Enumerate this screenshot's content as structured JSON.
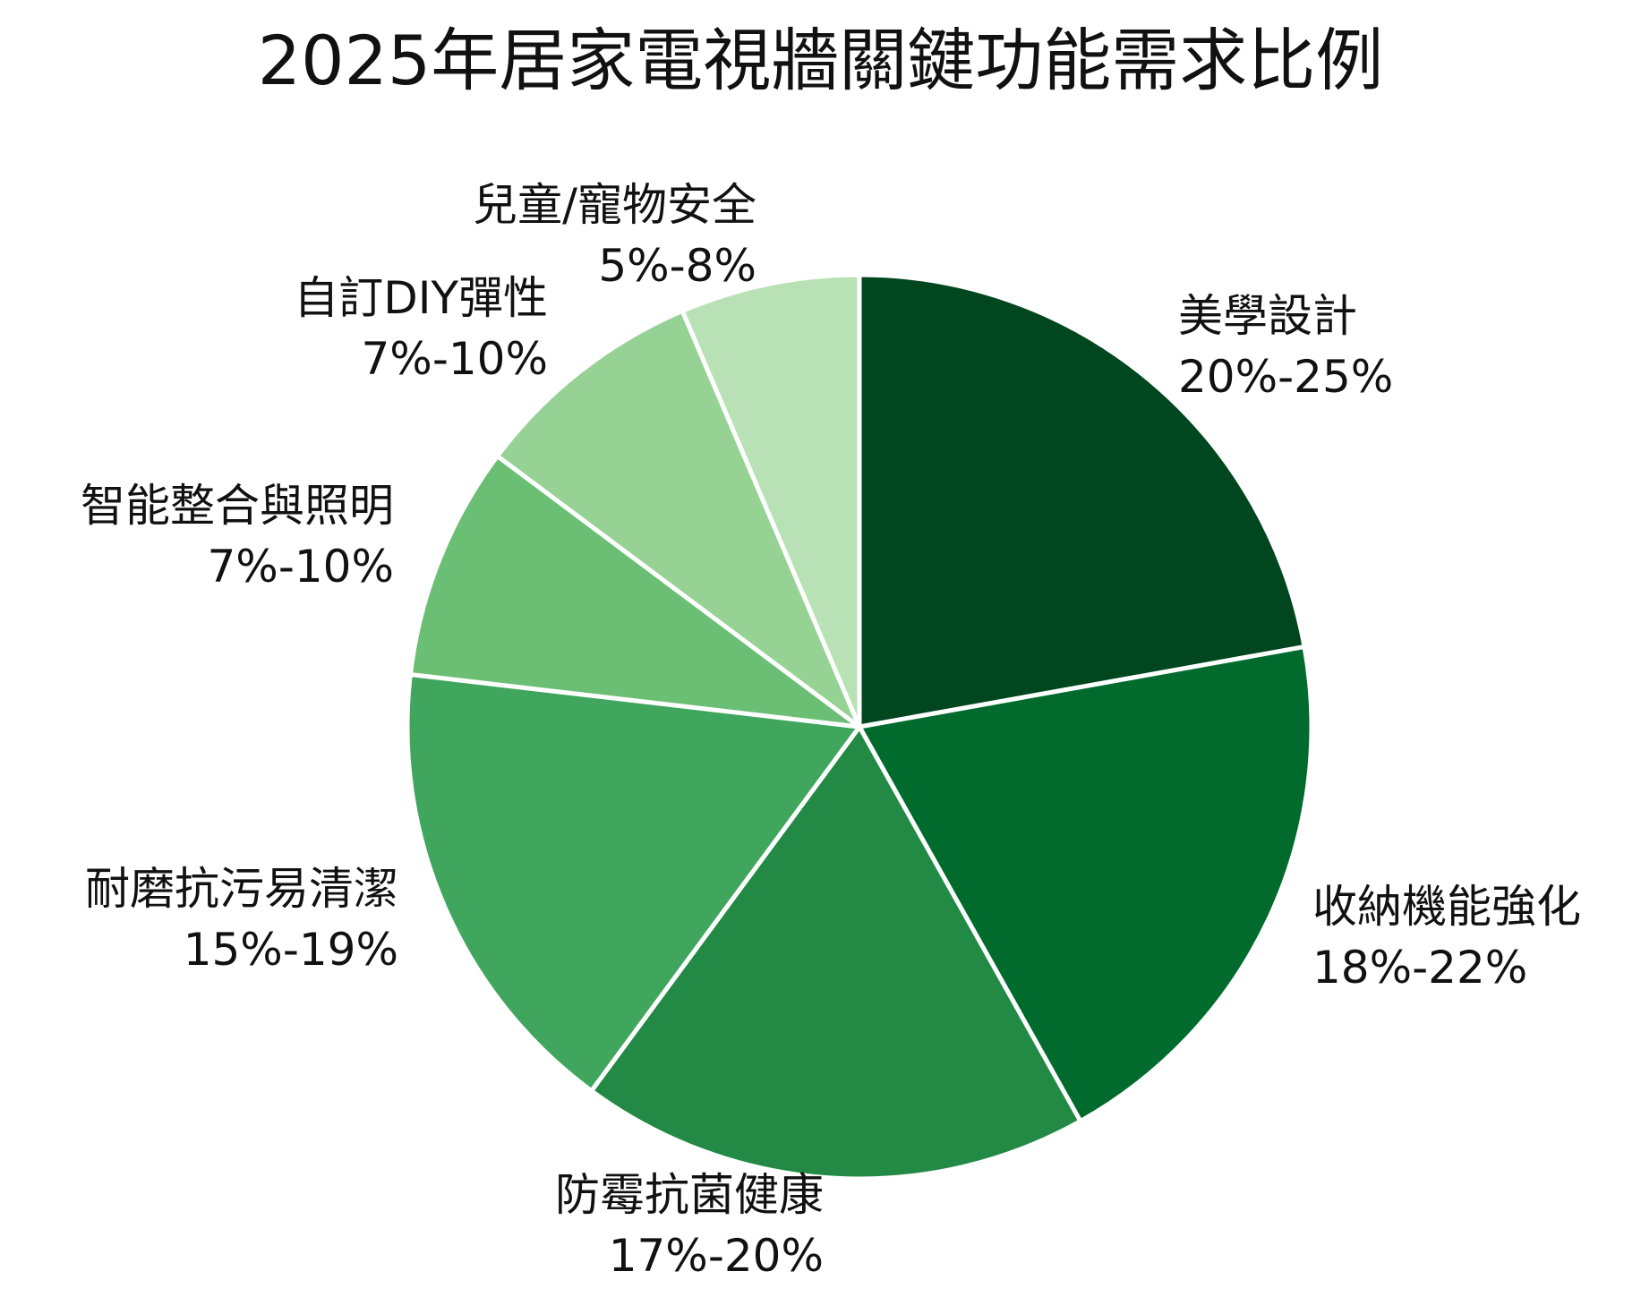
{
  "chart_data": {
    "type": "pie",
    "title": "2025年居家電視牆關鍵功能需求比例",
    "slices": [
      {
        "name": "美學設計",
        "range": "20%-25%",
        "value": 22.5,
        "color": "#00461e"
      },
      {
        "name": "收納機能強化",
        "range": "18%-22%",
        "value": 20,
        "color": "#006b2d"
      },
      {
        "name": "防霉抗菌健康",
        "range": "17%-20%",
        "value": 18.5,
        "color": "#228a44"
      },
      {
        "name": "耐磨抗污易清潔",
        "range": "15%-19%",
        "value": 17,
        "color": "#40a65e"
      },
      {
        "name": "智能整合與照明",
        "range": "7%-10%",
        "value": 8.5,
        "color": "#6bbf74"
      },
      {
        "name": "自訂DIY彈性",
        "range": "7%-10%",
        "value": 8.5,
        "color": "#95d293"
      },
      {
        "name": "兒童/寵物安全",
        "range": "5%-8%",
        "value": 6.5,
        "color": "#b8e2b5"
      }
    ],
    "start_angle": "12 o'clock",
    "direction": "clockwise",
    "legend": "none",
    "labels": "outside"
  }
}
